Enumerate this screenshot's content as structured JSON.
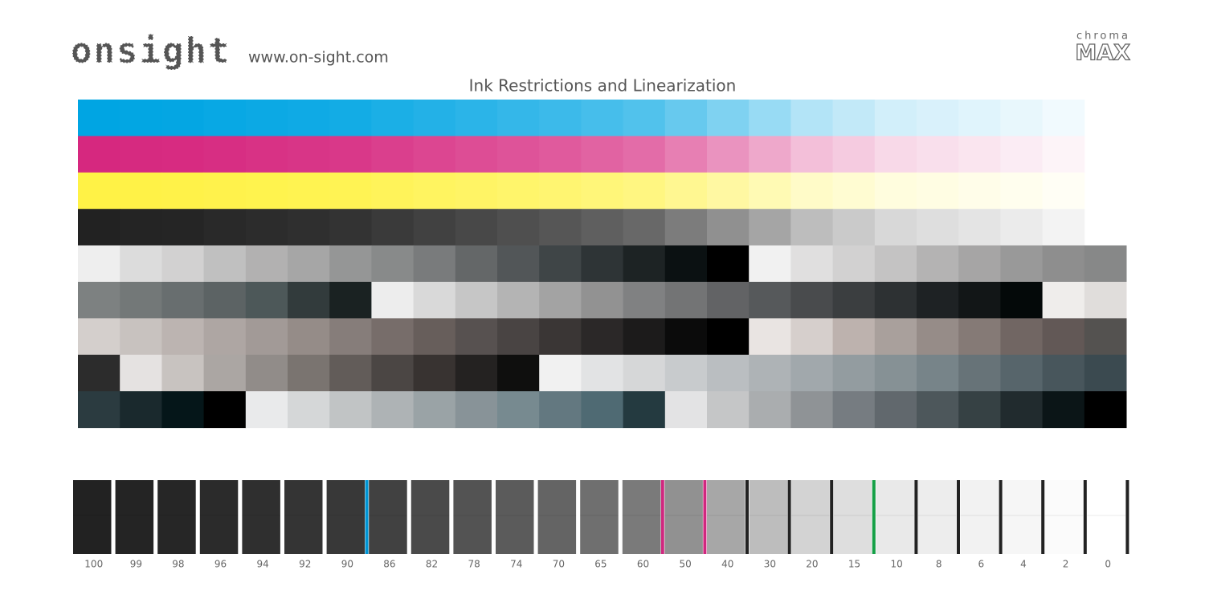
{
  "header": {
    "logo": "onsight",
    "url": "www.on-sight.com",
    "brand_small": "chroma",
    "brand_large": "MAX"
  },
  "title": "Ink Restrictions and Linearization",
  "scale": {
    "labels": [
      100,
      99,
      98,
      96,
      94,
      92,
      90,
      86,
      82,
      78,
      74,
      70,
      65,
      60,
      50,
      40,
      30,
      20,
      15,
      10,
      8,
      6,
      4,
      2,
      0
    ]
  }
}
